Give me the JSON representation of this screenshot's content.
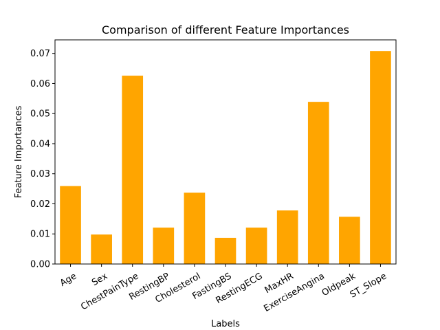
{
  "chart_data": {
    "type": "bar",
    "title": "Comparison of different Feature Importances",
    "xlabel": "Labels",
    "ylabel": "Feature Importances",
    "categories": [
      "Age",
      "Sex",
      "ChestPainType",
      "RestingBP",
      "Cholesterol",
      "FastingBS",
      "RestingECG",
      "MaxHR",
      "ExerciseAngina",
      "Oldpeak",
      "ST_Slope"
    ],
    "values": [
      0.0259,
      0.0098,
      0.0626,
      0.0121,
      0.0237,
      0.0087,
      0.0121,
      0.0178,
      0.0539,
      0.0157,
      0.0708
    ],
    "ylim": [
      0,
      0.0745
    ],
    "yticks": [
      0.0,
      0.01,
      0.02,
      0.03,
      0.04,
      0.05,
      0.06,
      0.07
    ],
    "ytick_labels": [
      "0.00",
      "0.01",
      "0.02",
      "0.03",
      "0.04",
      "0.05",
      "0.06",
      "0.07"
    ],
    "bar_color": "#ffa500",
    "grid": false,
    "legend": "none"
  }
}
